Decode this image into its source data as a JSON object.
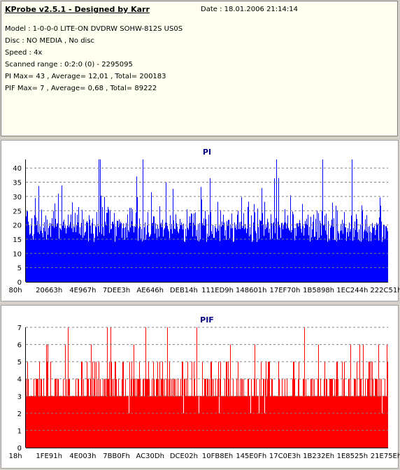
{
  "header": {
    "title": "KProbe v2.5.1 - Designed by Karr",
    "date": "Date : 18.01.2006 21:14:14",
    "lines": [
      "Model : 1-0-0-0 LITE-ON DVDRW SOHW-812S  US0S",
      "Disc : NO MEDIA , No disc",
      "Speed : 4x",
      "Scanned range : 0:2:0 (0) - 2295095",
      "PI Max= 43 , Average= 12,01 , Total= 200183",
      "PIF Max= 7 , Average= 0,68 , Total= 89222"
    ]
  },
  "chart_data": [
    {
      "type": "bar",
      "title": "PI",
      "color": "#0000ff",
      "ylim": [
        0,
        43
      ],
      "yticks": [
        0,
        5,
        10,
        15,
        20,
        25,
        30,
        35,
        40
      ],
      "grid": true,
      "xticks": [
        "80h",
        "20663h",
        "4E967h",
        "7DEE3h",
        "AE646h",
        "DEB14h",
        "111ED9h",
        "148601h",
        "17EF70h",
        "1B5898h",
        "1EC244h",
        "222C51h"
      ],
      "max": 43,
      "average": 12.01,
      "total": 200183
    },
    {
      "type": "bar",
      "title": "PIF",
      "color": "#ff0000",
      "ylim": [
        0,
        7
      ],
      "yticks": [
        0,
        1,
        2,
        3,
        4,
        5,
        6,
        7
      ],
      "grid": true,
      "xticks": [
        "18h",
        "1FE91h",
        "4E003h",
        "7BB0Fh",
        "AC30Dh",
        "DCE02h",
        "10FB8Eh",
        "145E0Fh",
        "17C0E3h",
        "1B232Eh",
        "1E8525h",
        "21E75Eh"
      ],
      "max": 7,
      "average": 0.68,
      "total": 89222
    }
  ]
}
